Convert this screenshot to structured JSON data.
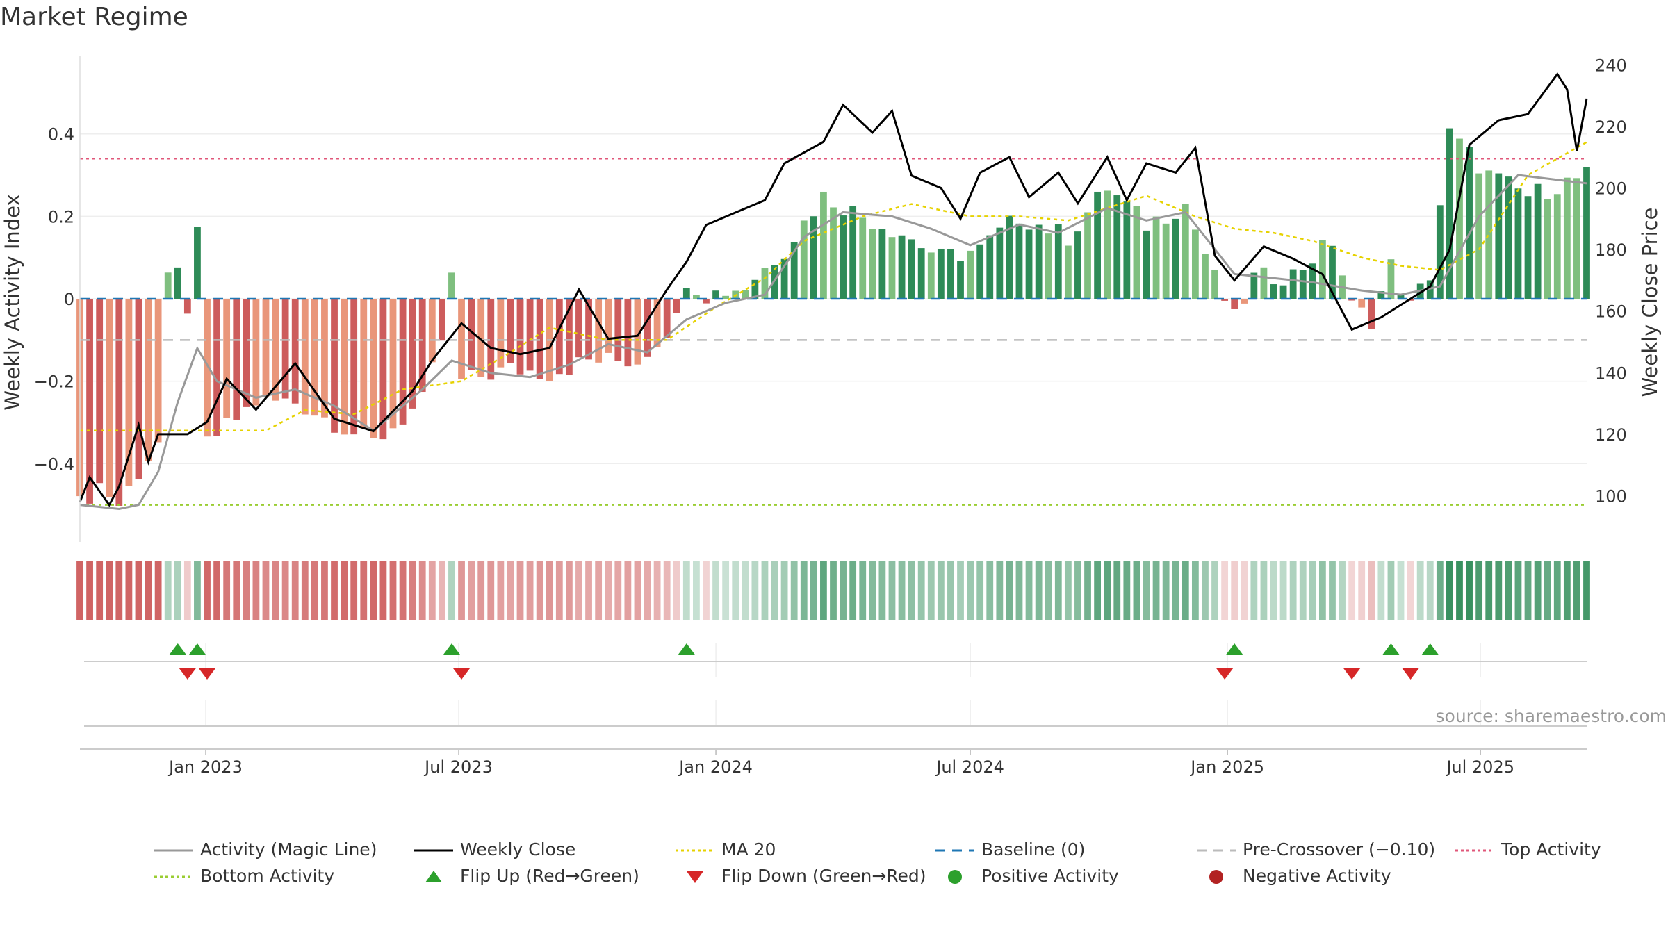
{
  "title": "Market Regime",
  "source": "source: sharemaestro.com",
  "colors": {
    "pos_dark": "#2e8b57",
    "pos_light": "#7fbf7f",
    "neg_dark": "#cd5c5c",
    "neg_light": "#e9967a",
    "magic": "#999999",
    "close": "#000000",
    "ma": "#e6d200",
    "baseline": "#1f77b4",
    "pre": "#bbbbbb",
    "top": "#e0577a",
    "bottom": "#9acd32",
    "flip_up": "#2ca02c",
    "flip_down": "#d62728"
  },
  "chart_data": {
    "type": "bar",
    "title": "Market Regime",
    "ylabel": "Weekly Activity Index",
    "y2label": "Weekly Close Price",
    "ylim": [
      -0.59,
      0.59
    ],
    "y2lim": [
      85,
      243
    ],
    "yticks": [
      -0.4,
      -0.2,
      0,
      0.2,
      0.4
    ],
    "ytick_labels": [
      "−0.4",
      "−0.2",
      "0",
      "0.2",
      "0.4"
    ],
    "y2ticks": [
      100,
      120,
      140,
      160,
      180,
      200,
      220,
      240
    ],
    "x_start": "2022-10-03",
    "x_end": "2025-09-15",
    "xticks": [
      "2023-01-01",
      "2023-07-01",
      "2024-01-01",
      "2024-07-01",
      "2025-01-01",
      "2025-07-01"
    ],
    "xtick_labels": [
      "Jan 2023",
      "Jul 2023",
      "Jan 2024",
      "Jul 2024",
      "Jan 2025",
      "Jul 2025"
    ],
    "top_activity": 0.34,
    "bottom_activity": -0.5,
    "pre_crossover": -0.1,
    "baseline": 0,
    "activity_anchors": [
      [
        "2022-10-03",
        -0.5
      ],
      [
        "2022-10-17",
        -0.45
      ],
      [
        "2022-10-31",
        -0.5
      ],
      [
        "2022-11-14",
        -0.42
      ],
      [
        "2022-11-28",
        -0.35
      ],
      [
        "2022-12-05",
        0.04
      ],
      [
        "2022-12-12",
        0.06
      ],
      [
        "2022-12-19",
        -0.02
      ],
      [
        "2022-12-26",
        0.15
      ],
      [
        "2023-01-02",
        -0.35
      ],
      [
        "2023-02-06",
        -0.25
      ],
      [
        "2023-03-06",
        -0.25
      ],
      [
        "2023-04-03",
        -0.3
      ],
      [
        "2023-05-01",
        -0.35
      ],
      [
        "2023-06-05",
        -0.25
      ],
      [
        "2023-06-19",
        -0.1
      ],
      [
        "2023-06-26",
        0.05
      ],
      [
        "2023-07-03",
        -0.2
      ],
      [
        "2023-08-07",
        -0.17
      ],
      [
        "2023-09-04",
        -0.18
      ],
      [
        "2023-10-02",
        -0.15
      ],
      [
        "2023-11-06",
        -0.15
      ],
      [
        "2023-12-04",
        -0.05
      ],
      [
        "2023-12-11",
        0.05
      ],
      [
        "2023-12-25",
        0.01
      ],
      [
        "2024-01-22",
        0.03
      ],
      [
        "2024-02-19",
        0.12
      ],
      [
        "2024-03-18",
        0.25
      ],
      [
        "2024-04-15",
        0.2
      ],
      [
        "2024-05-13",
        0.16
      ],
      [
        "2024-06-10",
        0.1
      ],
      [
        "2024-07-08",
        0.12
      ],
      [
        "2024-08-05",
        0.2
      ],
      [
        "2024-09-09",
        0.15
      ],
      [
        "2024-10-07",
        0.27
      ],
      [
        "2024-11-04",
        0.18
      ],
      [
        "2024-12-02",
        0.23
      ],
      [
        "2024-12-23",
        0.05
      ],
      [
        "2025-01-06",
        -0.05
      ],
      [
        "2025-01-20",
        0.05
      ],
      [
        "2025-02-17",
        0.06
      ],
      [
        "2025-03-17",
        0.14
      ],
      [
        "2025-03-31",
        -0.02
      ],
      [
        "2025-04-14",
        -0.05
      ],
      [
        "2025-04-28",
        0.08
      ],
      [
        "2025-05-12",
        -0.02
      ],
      [
        "2025-05-26",
        0.06
      ],
      [
        "2025-06-09",
        0.4
      ],
      [
        "2025-07-07",
        0.3
      ],
      [
        "2025-08-04",
        0.25
      ],
      [
        "2025-09-15",
        0.3
      ]
    ],
    "magic_line": [
      [
        "2022-10-03",
        -0.5
      ],
      [
        "2022-10-31",
        -0.51
      ],
      [
        "2022-11-14",
        -0.5
      ],
      [
        "2022-11-28",
        -0.42
      ],
      [
        "2022-12-12",
        -0.25
      ],
      [
        "2022-12-26",
        -0.12
      ],
      [
        "2023-01-09",
        -0.2
      ],
      [
        "2023-02-06",
        -0.24
      ],
      [
        "2023-03-06",
        -0.22
      ],
      [
        "2023-04-03",
        -0.26
      ],
      [
        "2023-05-01",
        -0.32
      ],
      [
        "2023-06-05",
        -0.22
      ],
      [
        "2023-06-26",
        -0.15
      ],
      [
        "2023-07-24",
        -0.18
      ],
      [
        "2023-08-21",
        -0.19
      ],
      [
        "2023-09-18",
        -0.16
      ],
      [
        "2023-10-16",
        -0.11
      ],
      [
        "2023-11-13",
        -0.13
      ],
      [
        "2023-12-11",
        -0.05
      ],
      [
        "2024-01-08",
        -0.01
      ],
      [
        "2024-02-05",
        0.01
      ],
      [
        "2024-03-04",
        0.15
      ],
      [
        "2024-04-01",
        0.21
      ],
      [
        "2024-05-06",
        0.2
      ],
      [
        "2024-06-03",
        0.17
      ],
      [
        "2024-07-01",
        0.13
      ],
      [
        "2024-08-05",
        0.18
      ],
      [
        "2024-09-02",
        0.16
      ],
      [
        "2024-10-07",
        0.22
      ],
      [
        "2024-11-04",
        0.19
      ],
      [
        "2024-12-02",
        0.21
      ],
      [
        "2025-01-06",
        0.06
      ],
      [
        "2025-02-03",
        0.05
      ],
      [
        "2025-03-03",
        0.04
      ],
      [
        "2025-04-07",
        0.02
      ],
      [
        "2025-05-05",
        0.01
      ],
      [
        "2025-06-02",
        0.03
      ],
      [
        "2025-06-30",
        0.2
      ],
      [
        "2025-07-28",
        0.3
      ],
      [
        "2025-09-15",
        0.28
      ]
    ],
    "weekly_close": [
      [
        "2022-10-03",
        98
      ],
      [
        "2022-10-10",
        106
      ],
      [
        "2022-10-24",
        97
      ],
      [
        "2022-10-31",
        103
      ],
      [
        "2022-11-14",
        123
      ],
      [
        "2022-11-21",
        111
      ],
      [
        "2022-11-28",
        120
      ],
      [
        "2022-12-19",
        120
      ],
      [
        "2023-01-02",
        124
      ],
      [
        "2023-01-16",
        138
      ],
      [
        "2023-02-06",
        128
      ],
      [
        "2023-03-06",
        143
      ],
      [
        "2023-04-03",
        125
      ],
      [
        "2023-05-01",
        121
      ],
      [
        "2023-05-29",
        134
      ],
      [
        "2023-06-12",
        144
      ],
      [
        "2023-07-03",
        156
      ],
      [
        "2023-07-24",
        148
      ],
      [
        "2023-08-14",
        146
      ],
      [
        "2023-09-04",
        148
      ],
      [
        "2023-09-25",
        167
      ],
      [
        "2023-10-16",
        151
      ],
      [
        "2023-11-06",
        152
      ],
      [
        "2023-11-27",
        167
      ],
      [
        "2023-12-11",
        176
      ],
      [
        "2023-12-25",
        188
      ],
      [
        "2024-01-15",
        192
      ],
      [
        "2024-02-05",
        196
      ],
      [
        "2024-02-19",
        208
      ],
      [
        "2024-03-18",
        215
      ],
      [
        "2024-04-01",
        227
      ],
      [
        "2024-04-22",
        218
      ],
      [
        "2024-05-06",
        225
      ],
      [
        "2024-05-20",
        204
      ],
      [
        "2024-06-10",
        200
      ],
      [
        "2024-06-24",
        190
      ],
      [
        "2024-07-08",
        205
      ],
      [
        "2024-07-29",
        210
      ],
      [
        "2024-08-12",
        197
      ],
      [
        "2024-09-02",
        205
      ],
      [
        "2024-09-16",
        195
      ],
      [
        "2024-10-07",
        210
      ],
      [
        "2024-10-21",
        196
      ],
      [
        "2024-11-04",
        208
      ],
      [
        "2024-11-25",
        205
      ],
      [
        "2024-12-09",
        213
      ],
      [
        "2024-12-23",
        178
      ],
      [
        "2025-01-06",
        170
      ],
      [
        "2025-01-27",
        181
      ],
      [
        "2025-02-17",
        177
      ],
      [
        "2025-03-10",
        172
      ],
      [
        "2025-03-31",
        154
      ],
      [
        "2025-04-21",
        158
      ],
      [
        "2025-05-05",
        162
      ],
      [
        "2025-05-26",
        168
      ],
      [
        "2025-06-09",
        180
      ],
      [
        "2025-06-23",
        214
      ],
      [
        "2025-07-14",
        222
      ],
      [
        "2025-08-04",
        224
      ],
      [
        "2025-08-25",
        237
      ],
      [
        "2025-09-01",
        232
      ],
      [
        "2025-09-08",
        212
      ],
      [
        "2025-09-15",
        229
      ]
    ],
    "ma_20": [
      [
        "2022-10-03",
        -0.32
      ],
      [
        "2023-02-13",
        -0.32
      ],
      [
        "2023-03-13",
        -0.27
      ],
      [
        "2023-04-17",
        -0.28
      ],
      [
        "2023-05-22",
        -0.22
      ],
      [
        "2023-07-03",
        -0.2
      ],
      [
        "2023-08-07",
        -0.13
      ],
      [
        "2023-09-04",
        -0.07
      ],
      [
        "2023-10-16",
        -0.1
      ],
      [
        "2023-11-27",
        -0.1
      ],
      [
        "2024-01-01",
        -0.02
      ],
      [
        "2024-02-05",
        0.05
      ],
      [
        "2024-03-04",
        0.14
      ],
      [
        "2024-04-15",
        0.2
      ],
      [
        "2024-05-20",
        0.23
      ],
      [
        "2024-07-01",
        0.2
      ],
      [
        "2024-08-05",
        0.2
      ],
      [
        "2024-09-09",
        0.19
      ],
      [
        "2024-11-04",
        0.25
      ],
      [
        "2024-12-09",
        0.2
      ],
      [
        "2025-01-06",
        0.17
      ],
      [
        "2025-02-03",
        0.16
      ],
      [
        "2025-03-03",
        0.14
      ],
      [
        "2025-04-07",
        0.1
      ],
      [
        "2025-05-05",
        0.08
      ],
      [
        "2025-06-02",
        0.07
      ],
      [
        "2025-06-30",
        0.12
      ],
      [
        "2025-08-04",
        0.3
      ],
      [
        "2025-09-15",
        0.38
      ]
    ],
    "flips_up": [
      "2022-12-12",
      "2022-12-26",
      "2023-06-26",
      "2023-12-11",
      "2025-01-06",
      "2025-04-28",
      "2025-05-26"
    ],
    "flips_down": [
      "2022-12-19",
      "2023-01-02",
      "2023-07-03",
      "2024-12-30",
      "2025-03-31",
      "2025-05-12"
    ],
    "legend": [
      {
        "label": "Activity (Magic Line)",
        "symbol": "line",
        "color": "#999999"
      },
      {
        "label": "Weekly Close",
        "symbol": "line",
        "color": "#000000"
      },
      {
        "label": "MA 20",
        "symbol": "dotted",
        "color": "#e6d200"
      },
      {
        "label": "Baseline (0)",
        "symbol": "dashed",
        "color": "#1f77b4"
      },
      {
        "label": "Pre-Crossover (−0.10)",
        "symbol": "dashed",
        "color": "#bbbbbb"
      },
      {
        "label": "Top Activity",
        "symbol": "dotted",
        "color": "#e0577a"
      },
      {
        "label": "Bottom Activity",
        "symbol": "dotted",
        "color": "#9acd32"
      },
      {
        "label": "Flip Up (Red→Green)",
        "symbol": "triangle-up",
        "color": "#2ca02c"
      },
      {
        "label": "Flip Down (Green→Red)",
        "symbol": "triangle-down",
        "color": "#d62728"
      },
      {
        "label": "Positive Activity",
        "symbol": "dot",
        "color": "#2ca02c"
      },
      {
        "label": "Negative Activity",
        "symbol": "dot",
        "color": "#b22222"
      }
    ],
    "legend_placement": "bottom"
  }
}
